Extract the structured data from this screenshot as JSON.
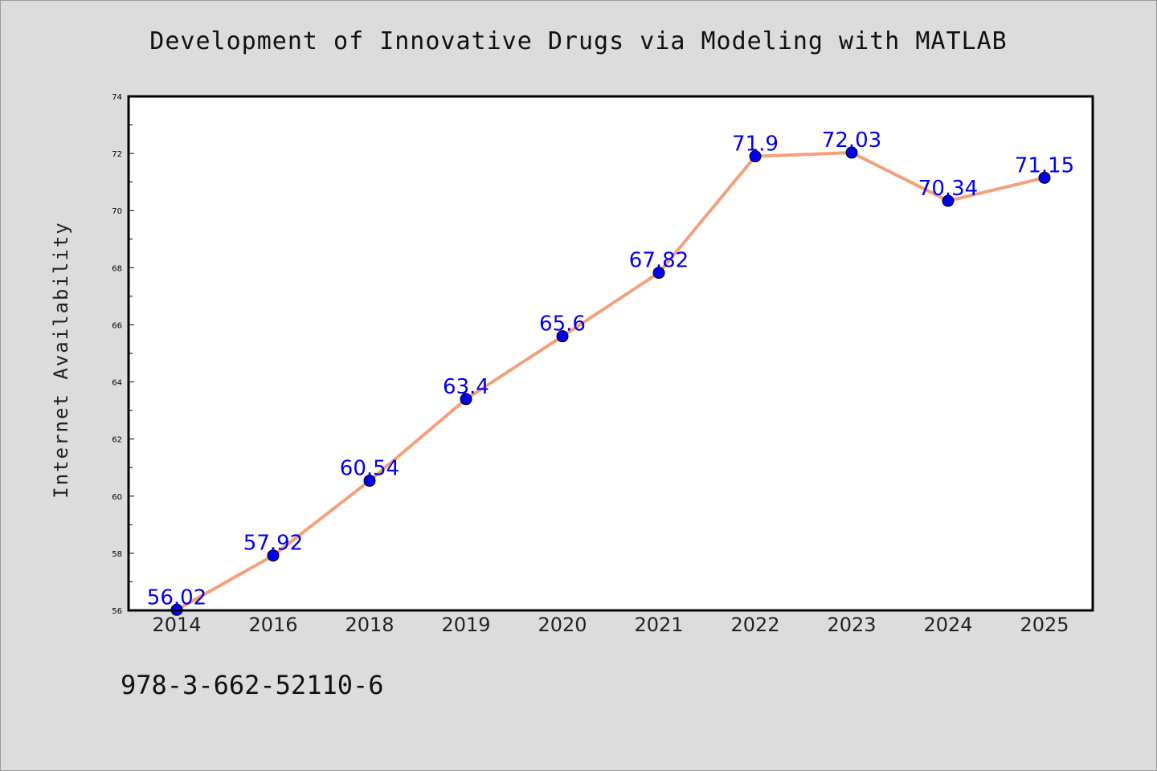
{
  "chart_data": {
    "type": "line",
    "title": "Development of Innovative Drugs via Modeling with MATLAB",
    "xlabel": "",
    "ylabel": "Internet Availability",
    "categories": [
      "2014",
      "2016",
      "2018",
      "2019",
      "2020",
      "2021",
      "2022",
      "2023",
      "2024",
      "2025"
    ],
    "series": [
      {
        "values": [
          56.02,
          57.92,
          60.54,
          63.4,
          65.6,
          67.82,
          71.9,
          72.03,
          70.34,
          71.15
        ],
        "labels": [
          "56.02",
          "57.92",
          "60.54",
          "63.4",
          "65.6",
          "67.82",
          "71.9",
          "72.03",
          "70.34",
          "71.15"
        ]
      }
    ],
    "ylim": [
      56,
      74
    ],
    "yticks": [
      "56",
      "58",
      "60",
      "62",
      "64",
      "66",
      "68",
      "70",
      "72",
      "74"
    ],
    "grid": false,
    "legend": "none"
  },
  "colors": {
    "line": "#f4a07a",
    "marker": "#0000ee",
    "data_label": "#0000ee",
    "plot_background": "#ffffff",
    "page_background": "#dcdcdc"
  },
  "footnote": "978-3-662-52110-6"
}
